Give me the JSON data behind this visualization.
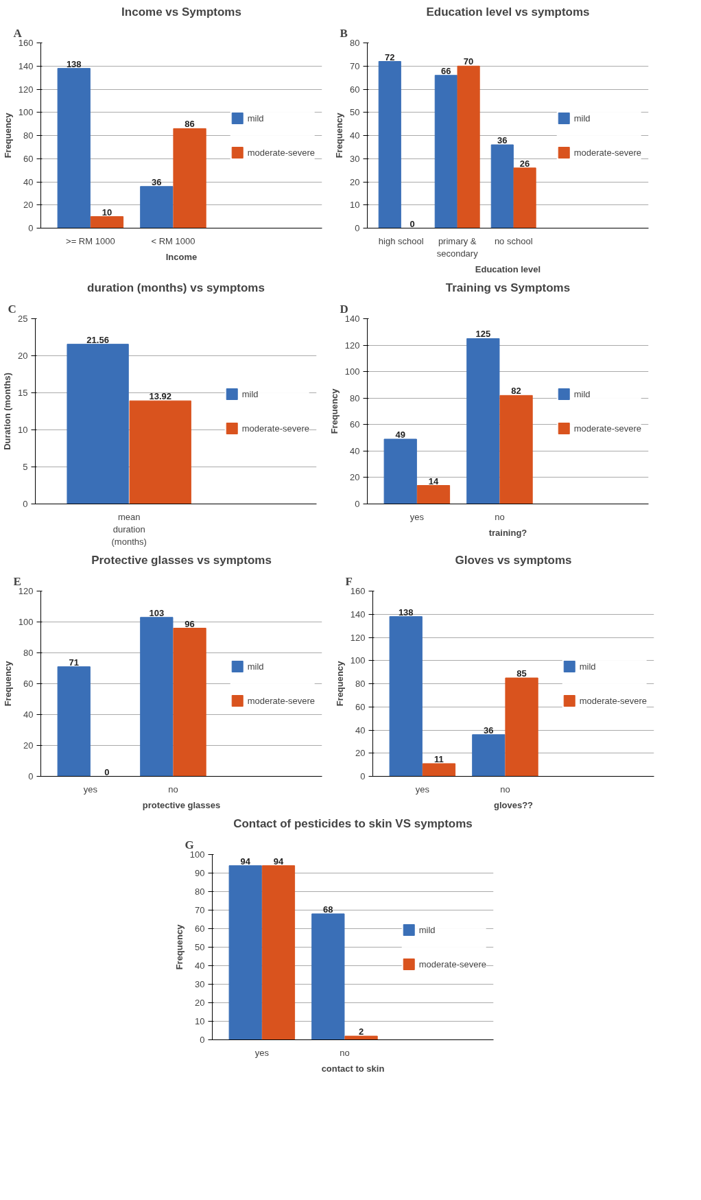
{
  "chart_data": [
    {
      "type": "bar",
      "title": "Income vs Symptoms",
      "xlabel": "Income",
      "ylabel": "Frequency",
      "annotations": [
        "A"
      ],
      "categories": [
        ">= RM 1000",
        "< RM 1000"
      ],
      "series": [
        {
          "name": "mild",
          "color": "#3a6fb7",
          "values": [
            138,
            36
          ]
        },
        {
          "name": "moderate-severe",
          "color": "#d9531e",
          "values": [
            10,
            86
          ]
        }
      ],
      "ylim": [
        0,
        160
      ],
      "yticks": [
        0,
        20,
        40,
        60,
        80,
        100,
        120,
        140,
        160
      ],
      "grid": "y",
      "legend": "right",
      "data_labels": true
    },
    {
      "type": "bar",
      "title": "Education level vs symptoms",
      "xlabel": "Education level",
      "ylabel": "Frequency",
      "annotations": [
        "B"
      ],
      "categories": [
        "high school",
        "primary & secondary",
        "no school"
      ],
      "series": [
        {
          "name": "mild",
          "color": "#3a6fb7",
          "values": [
            72,
            66,
            36
          ]
        },
        {
          "name": "moderate-severe",
          "color": "#d9531e",
          "values": [
            0,
            70,
            26
          ]
        }
      ],
      "ylim": [
        0,
        80
      ],
      "yticks": [
        0,
        10,
        20,
        30,
        40,
        50,
        60,
        70,
        80
      ],
      "grid": "y",
      "legend": "right",
      "data_labels": true
    },
    {
      "type": "bar",
      "title": "duration (months) vs symptoms",
      "ylabel": "Duration (months)",
      "annotations": [
        "C"
      ],
      "categories": [
        "mean duration (months)"
      ],
      "series": [
        {
          "name": "mild",
          "color": "#3a6fb7",
          "values": [
            21.56
          ]
        },
        {
          "name": "moderate-severe",
          "color": "#d9531e",
          "values": [
            13.92
          ]
        }
      ],
      "ylim": [
        0,
        25
      ],
      "yticks": [
        0,
        5,
        10,
        15,
        20,
        25
      ],
      "grid": "y",
      "legend": "right",
      "data_labels": true
    },
    {
      "type": "bar",
      "title": "Training vs Symptoms",
      "xlabel": "training?",
      "ylabel": "Frequency",
      "annotations": [
        "D"
      ],
      "categories": [
        "yes",
        "no"
      ],
      "series": [
        {
          "name": "mild",
          "color": "#3a6fb7",
          "values": [
            49,
            125
          ]
        },
        {
          "name": "moderate-severe",
          "color": "#d9531e",
          "values": [
            14,
            82
          ]
        }
      ],
      "ylim": [
        0,
        140
      ],
      "yticks": [
        0,
        20,
        40,
        60,
        80,
        100,
        120,
        140
      ],
      "grid": "y",
      "legend": "right",
      "data_labels": true
    },
    {
      "type": "bar",
      "title": "Protective glasses vs symptoms",
      "xlabel": "protective glasses",
      "ylabel": "Frequency",
      "annotations": [
        "E"
      ],
      "categories": [
        "yes",
        "no"
      ],
      "series": [
        {
          "name": "mild",
          "color": "#3a6fb7",
          "values": [
            71,
            103
          ]
        },
        {
          "name": "moderate-severe",
          "color": "#d9531e",
          "values": [
            0,
            96
          ]
        }
      ],
      "ylim": [
        0,
        120
      ],
      "yticks": [
        0,
        20,
        40,
        60,
        80,
        100,
        120
      ],
      "grid": "y",
      "legend": "right",
      "data_labels": true
    },
    {
      "type": "bar",
      "title": "Gloves vs symptoms",
      "xlabel": "gloves??",
      "ylabel": "Frequency",
      "annotations": [
        "F"
      ],
      "categories": [
        "yes",
        "no"
      ],
      "series": [
        {
          "name": "mild",
          "color": "#3a6fb7",
          "values": [
            138,
            36
          ]
        },
        {
          "name": "moderate-severe",
          "color": "#d9531e",
          "values": [
            11,
            85
          ]
        }
      ],
      "ylim": [
        0,
        160
      ],
      "yticks": [
        0,
        20,
        40,
        60,
        80,
        100,
        120,
        140,
        160
      ],
      "grid": "y",
      "legend": "right",
      "data_labels": true
    },
    {
      "type": "bar",
      "title": "Contact of pesticides to skin VS symptoms",
      "xlabel": "contact to skin",
      "ylabel": "Frequency",
      "annotations": [
        "G"
      ],
      "categories": [
        "yes",
        "no"
      ],
      "series": [
        {
          "name": "mild",
          "color": "#3a6fb7",
          "values": [
            94,
            68
          ]
        },
        {
          "name": "moderate-severe",
          "color": "#d9531e",
          "values": [
            94,
            2
          ]
        }
      ],
      "ylim": [
        0,
        100
      ],
      "yticks": [
        0,
        10,
        20,
        30,
        40,
        50,
        60,
        70,
        80,
        90,
        100
      ],
      "grid": "y",
      "legend": "right",
      "data_labels": true
    }
  ]
}
